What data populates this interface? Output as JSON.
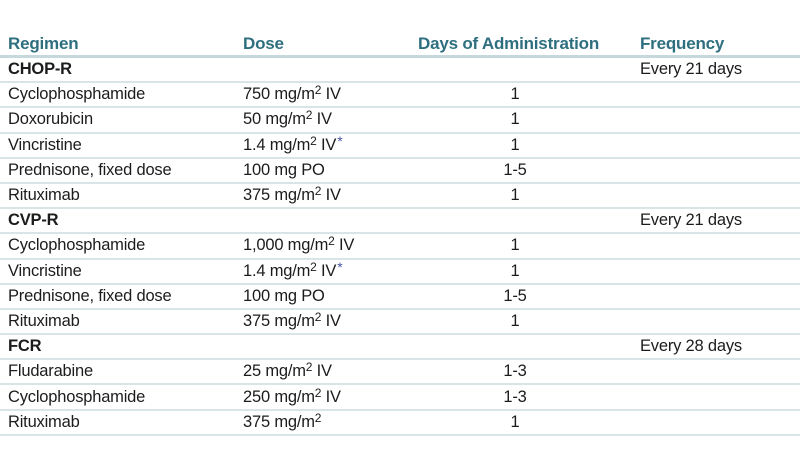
{
  "table": {
    "colors": {
      "header_text": "#2e6f7f",
      "row_rule": "#d9e4e6",
      "header_rule": "#c6d8db",
      "body_text": "#1c1c1c",
      "asterisk": "#4853a6"
    },
    "headers": [
      "Regimen",
      "Dose",
      "Days of Administration",
      "Frequency"
    ],
    "rows": [
      {
        "type": "section",
        "regimen": "CHOP-R",
        "frequency": "Every 21 days"
      },
      {
        "type": "drug",
        "regimen": "Cyclophosphamide",
        "dose": {
          "pre": "750 mg/m",
          "sup": "2",
          "post": " IV"
        },
        "days": "1"
      },
      {
        "type": "drug",
        "regimen": "Doxorubicin",
        "dose": {
          "pre": "50 mg/m",
          "sup": "2",
          "post": " IV"
        },
        "days": "1"
      },
      {
        "type": "drug",
        "regimen": "Vincristine",
        "dose": {
          "pre": "1.4 mg/m",
          "sup": "2",
          "post": " IV",
          "star": "*"
        },
        "days": "1"
      },
      {
        "type": "drug",
        "regimen": "Prednisone, fixed dose",
        "dose": {
          "pre": "100 mg PO"
        },
        "days": "1-5"
      },
      {
        "type": "drug",
        "regimen": "Rituximab",
        "dose": {
          "pre": "375 mg/m",
          "sup": "2",
          "post": " IV"
        },
        "days": "1"
      },
      {
        "type": "section",
        "regimen": "CVP-R",
        "frequency": "Every 21 days"
      },
      {
        "type": "drug",
        "regimen": "Cyclophosphamide",
        "dose": {
          "pre": "1,000 mg/m",
          "sup": "2",
          "post": " IV"
        },
        "days": "1"
      },
      {
        "type": "drug",
        "regimen": "Vincristine",
        "dose": {
          "pre": "1.4 mg/m",
          "sup": "2",
          "post": " IV",
          "star": "*"
        },
        "days": "1"
      },
      {
        "type": "drug",
        "regimen": "Prednisone, fixed dose",
        "dose": {
          "pre": "100 mg PO"
        },
        "days": "1-5"
      },
      {
        "type": "drug",
        "regimen": "Rituximab",
        "dose": {
          "pre": "375 mg/m",
          "sup": "2",
          "post": " IV"
        },
        "days": "1"
      },
      {
        "type": "section",
        "regimen": "FCR",
        "frequency": "Every 28 days"
      },
      {
        "type": "drug",
        "regimen": "Fludarabine",
        "dose": {
          "pre": "25 mg/m",
          "sup": "2",
          "post": " IV"
        },
        "days": "1-3"
      },
      {
        "type": "drug",
        "regimen": "Cyclophosphamide",
        "dose": {
          "pre": "250 mg/m",
          "sup": "2",
          "post": " IV"
        },
        "days": "1-3"
      },
      {
        "type": "drug",
        "regimen": "Rituximab",
        "dose": {
          "pre": "375 mg/m",
          "sup": "2"
        },
        "days": "1"
      }
    ]
  }
}
